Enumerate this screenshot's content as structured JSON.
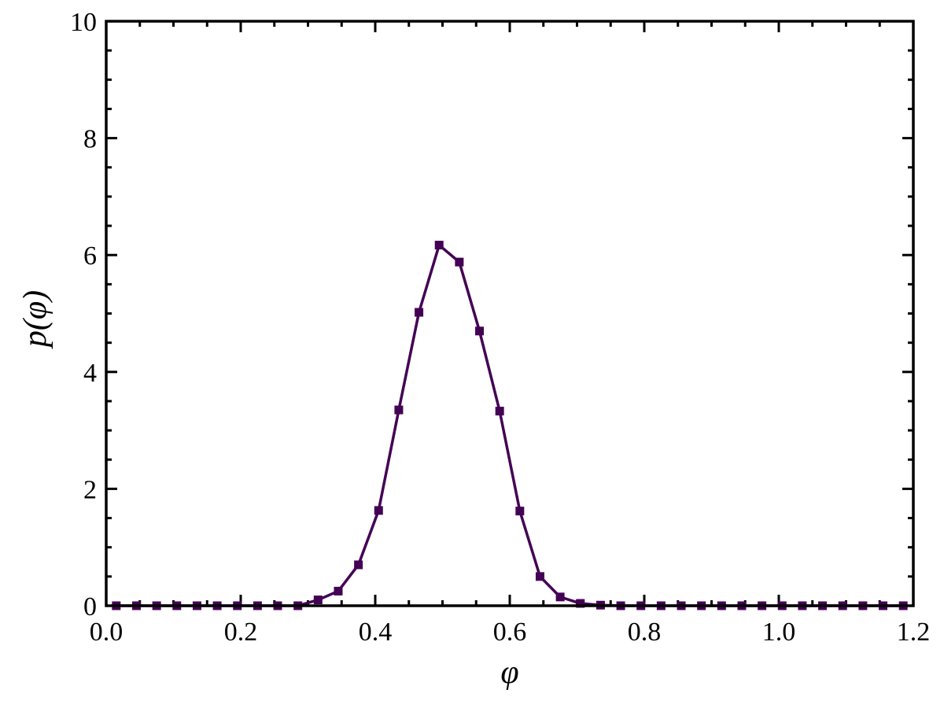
{
  "chart_data": {
    "type": "line",
    "xlabel": "φ",
    "ylabel": "p(φ)",
    "x": [
      0.015,
      0.045,
      0.075,
      0.105,
      0.135,
      0.165,
      0.195,
      0.225,
      0.255,
      0.285,
      0.315,
      0.345,
      0.375,
      0.405,
      0.435,
      0.465,
      0.495,
      0.525,
      0.555,
      0.585,
      0.615,
      0.645,
      0.675,
      0.705,
      0.735,
      0.765,
      0.795,
      0.825,
      0.855,
      0.885,
      0.915,
      0.945,
      0.975,
      1.005,
      1.035,
      1.065,
      1.095,
      1.125,
      1.155,
      1.185
    ],
    "series": [
      {
        "color": "#440154",
        "marker": "square",
        "values": [
          0,
          0,
          0,
          0,
          0,
          0,
          0,
          0,
          0,
          0,
          0.1,
          0.25,
          0.7,
          1.63,
          3.35,
          5.02,
          6.17,
          5.88,
          4.7,
          3.33,
          1.62,
          0.5,
          0.15,
          0.04,
          0.01,
          0,
          0,
          0,
          0,
          0,
          0,
          0,
          0,
          0,
          0,
          0,
          0,
          0,
          0,
          0
        ]
      }
    ],
    "xlim": [
      0,
      1.2
    ],
    "ylim": [
      0,
      10
    ],
    "xticks": [
      {
        "value": 0,
        "label": "0.0"
      },
      0.2,
      0.4,
      0.6,
      0.8,
      {
        "value": 1,
        "label": "1.0"
      },
      1.2
    ],
    "yticks": [
      0,
      2,
      4,
      6,
      8,
      10
    ],
    "xminorticks": [
      0.05,
      0.1,
      0.15,
      0.25,
      0.3,
      0.35,
      0.45,
      0.5,
      0.55,
      0.65,
      0.7,
      0.75,
      0.85,
      0.9,
      0.95,
      1.05,
      1.1,
      1.15
    ],
    "yminorticks": [
      0.5,
      1,
      1.5,
      2.5,
      3,
      3.5,
      4.5,
      5,
      5.5,
      6.5,
      7,
      7.5,
      8.5,
      9,
      9.5
    ],
    "grid": false
  }
}
